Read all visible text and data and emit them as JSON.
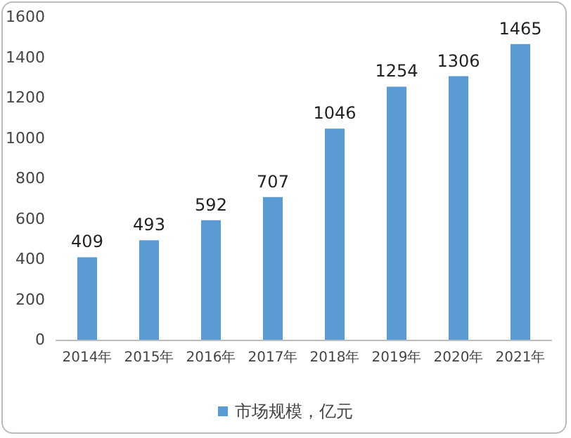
{
  "chart_data": {
    "type": "bar",
    "categories": [
      "2014年",
      "2015年",
      "2016年",
      "2017年",
      "2018年",
      "2019年",
      "2020年",
      "2021年"
    ],
    "series": [
      {
        "name": "市场规模，亿元",
        "color": "#5b9bd5",
        "values": [
          409,
          493,
          592,
          707,
          1046,
          1254,
          1306,
          1465
        ]
      }
    ],
    "ylim": [
      0,
      1600
    ],
    "yticks": [
      0,
      200,
      400,
      600,
      800,
      1000,
      1200,
      1400,
      1600
    ],
    "data_labels": true,
    "grid": false,
    "legend": "bottom"
  }
}
